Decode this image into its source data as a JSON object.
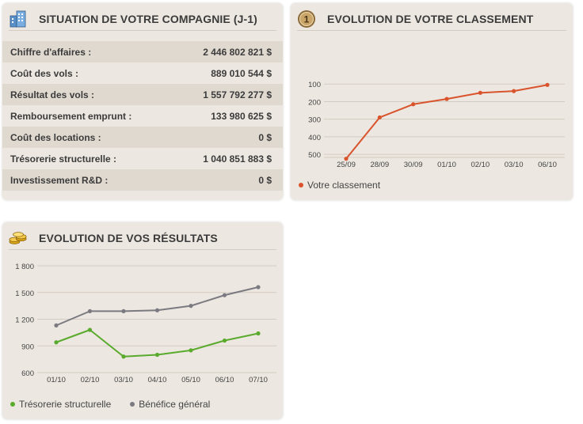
{
  "situation": {
    "title": "SITUATION DE VOTRE COMPAGNIE (J-1)",
    "icon": "building-icon",
    "rows": [
      {
        "label": "Chiffre d'affaires :",
        "value": "2 446 802 821 $"
      },
      {
        "label": "Coût des vols :",
        "value": "889 010 544 $"
      },
      {
        "label": "Résultat des vols :",
        "value": "1 557 792 277 $"
      },
      {
        "label": "Remboursement emprunt :",
        "value": "133 980 625 $"
      },
      {
        "label": "Coût des locations :",
        "value": "0 $"
      },
      {
        "label": "Trésorerie structurelle :",
        "value": "1 040 851 883 $"
      },
      {
        "label": "Investissement R&D :",
        "value": "0 $"
      }
    ]
  },
  "classement": {
    "title": "EVOLUTION DE VOTRE CLASSEMENT",
    "icon": "rank-medal-icon",
    "legend": "Votre classement"
  },
  "resultats": {
    "title": "EVOLUTION DE VOS RÉSULTATS",
    "icon": "gold-coins-icon",
    "legend": [
      "Trésorerie structurelle",
      "Bénéfice général"
    ]
  },
  "chart_data": [
    {
      "type": "line",
      "x": [
        "25/09",
        "28/09",
        "30/09",
        "01/10",
        "02/10",
        "03/10",
        "06/10"
      ],
      "series": [
        {
          "name": "Votre classement",
          "color": "#d9532c",
          "values": [
            525,
            290,
            215,
            185,
            150,
            140,
            105
          ]
        }
      ],
      "yticks": [
        100,
        200,
        300,
        400,
        500
      ],
      "ylim": [
        0,
        540
      ],
      "yreversed": true,
      "grid": true,
      "legend_position": "bottom-left"
    },
    {
      "type": "line",
      "x": [
        "01/10",
        "02/10",
        "03/10",
        "04/10",
        "05/10",
        "06/10",
        "07/10"
      ],
      "series": [
        {
          "name": "Trésorerie structurelle",
          "color": "#5aaa2e",
          "values": [
            940,
            1080,
            780,
            800,
            850,
            960,
            1040
          ]
        },
        {
          "name": "Bénéfice général",
          "color": "#7a7a80",
          "values": [
            1130,
            1290,
            1290,
            1300,
            1350,
            1470,
            1560
          ]
        }
      ],
      "yticks": [
        "600",
        "900",
        "1 200",
        "1 500",
        "1 800"
      ],
      "ylim": [
        600,
        1800
      ],
      "grid": true,
      "legend_position": "bottom-left"
    }
  ]
}
